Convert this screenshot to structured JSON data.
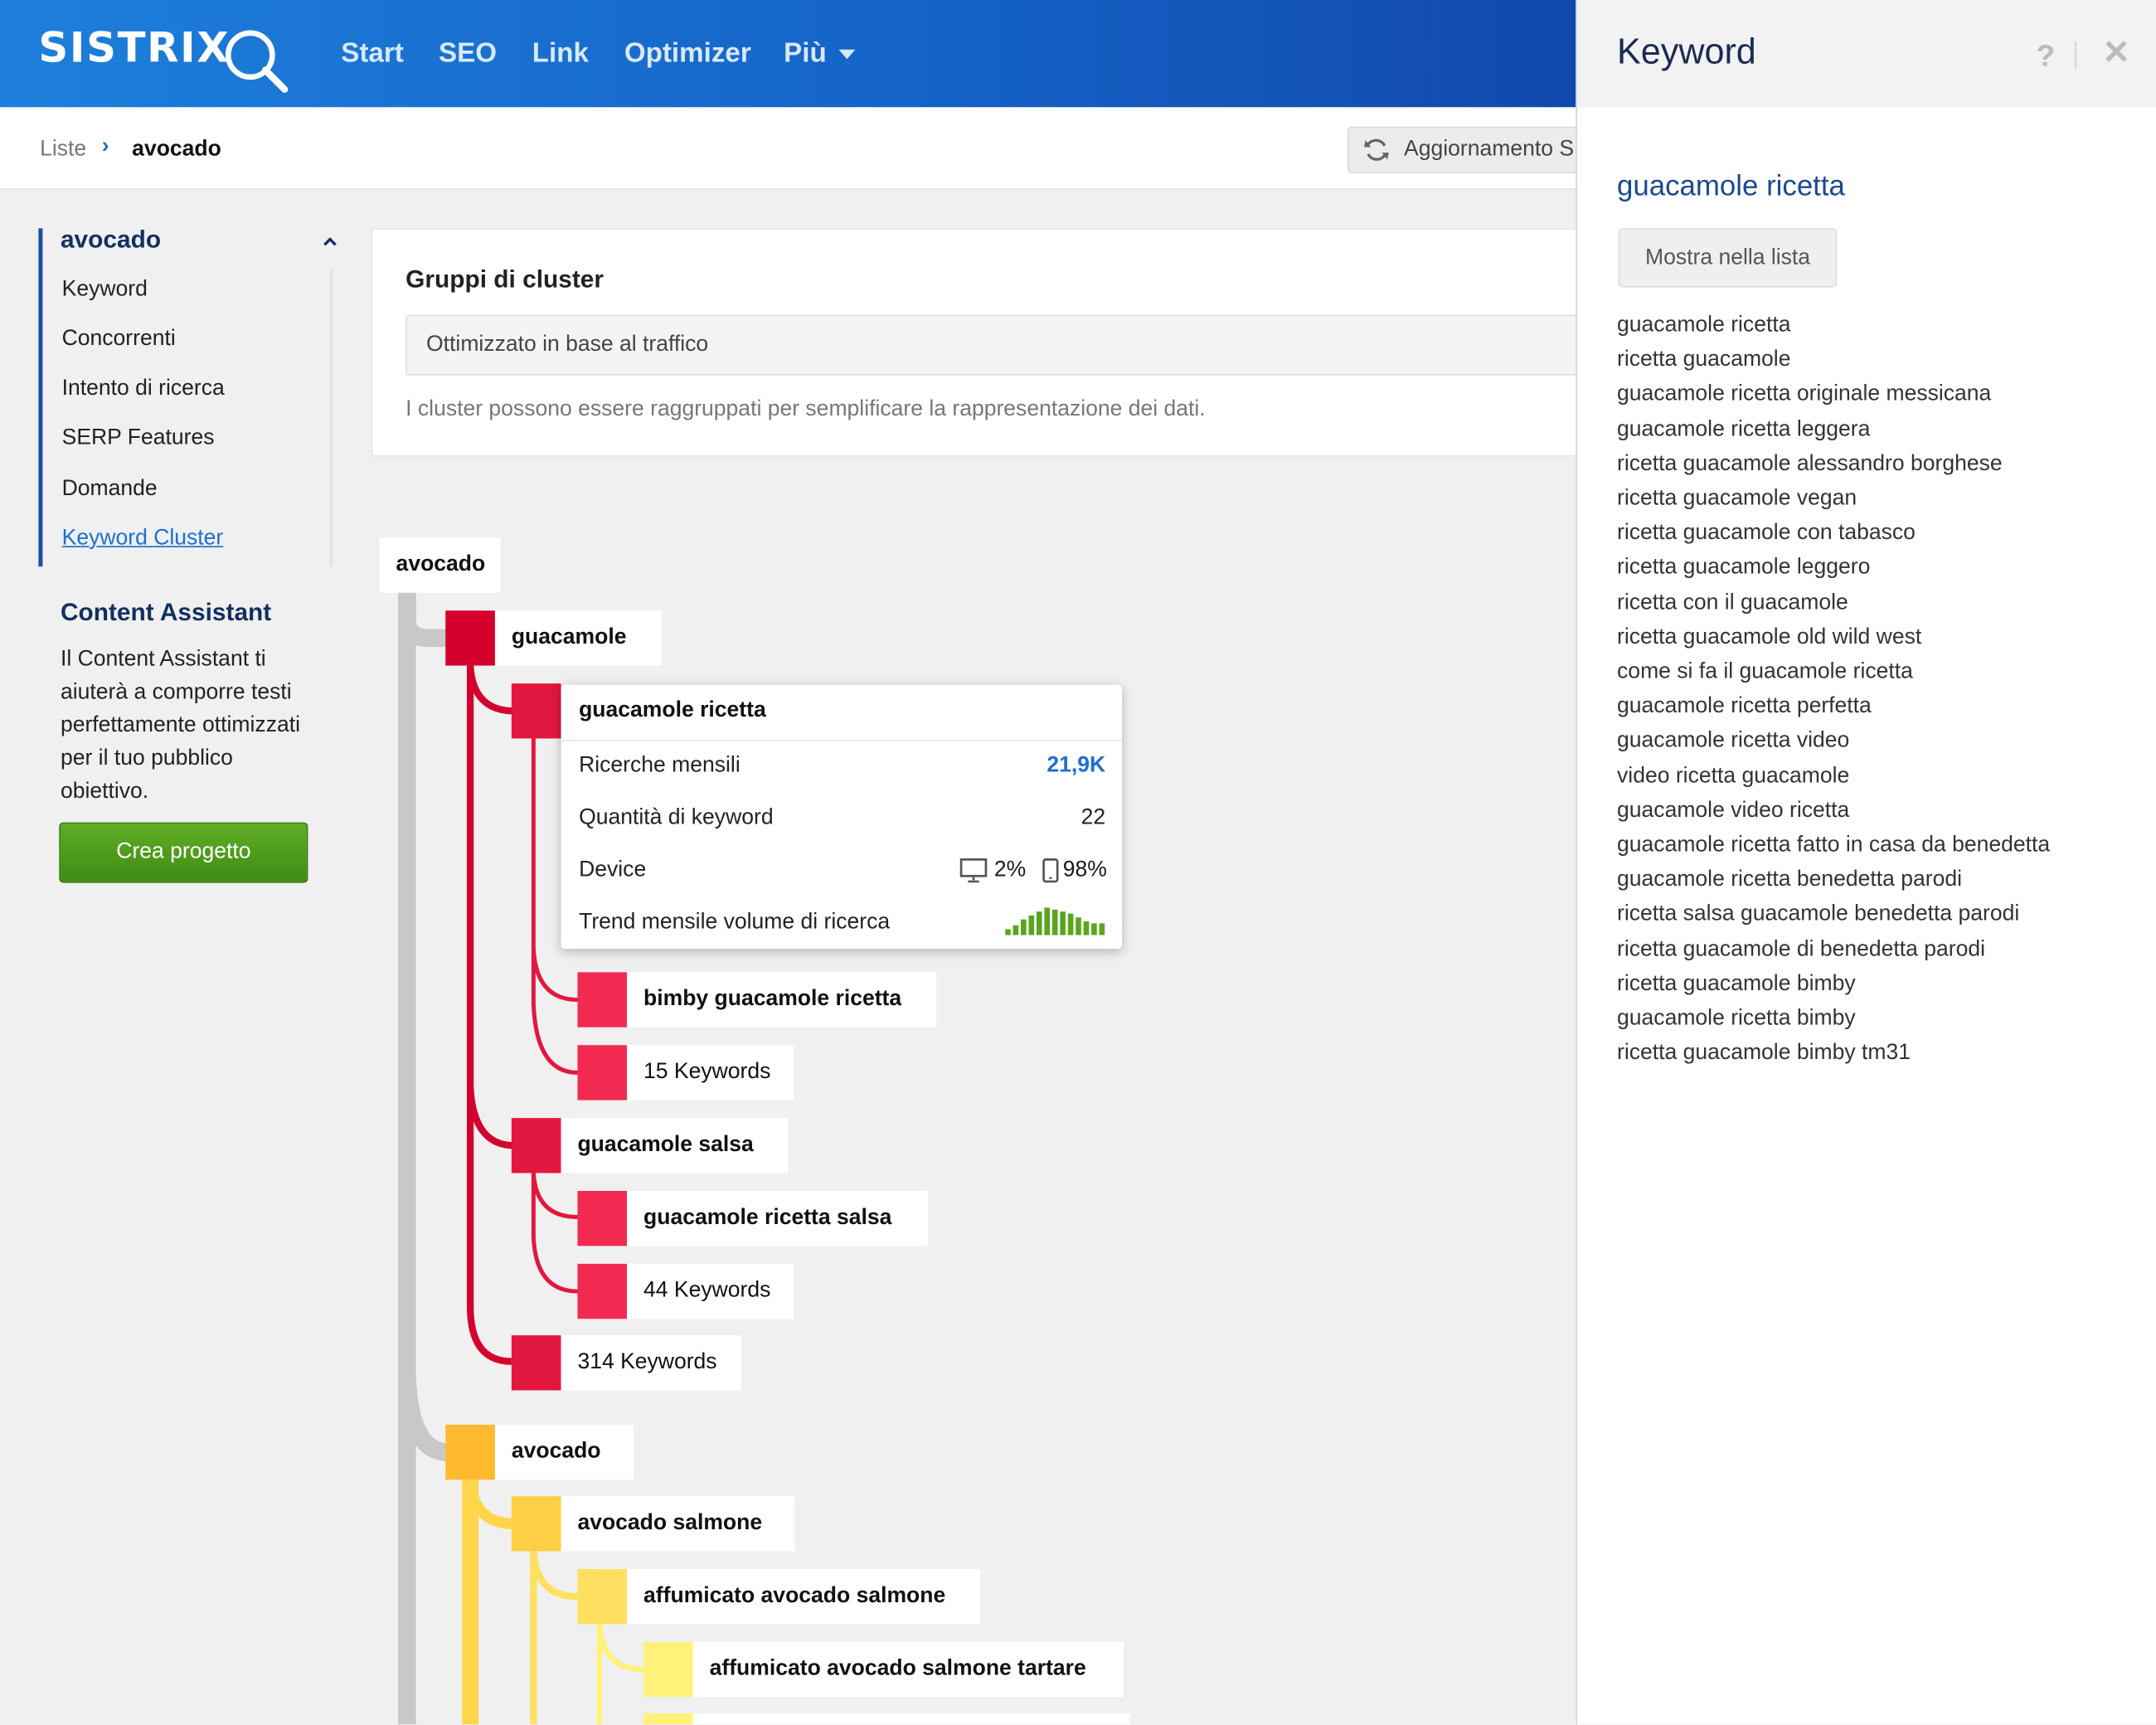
{
  "header": {
    "logo": "SISTRIX",
    "nav": [
      "Start",
      "SEO",
      "Link",
      "Optimizer",
      "Più"
    ]
  },
  "breadcrumb": {
    "root": "Liste",
    "separator": "›",
    "current": "avocado"
  },
  "refresh_button": "Aggiornamento S",
  "sidebar": {
    "title": "avocado",
    "items": [
      "Keyword",
      "Concorrenti",
      "Intento di ricerca",
      "SERP Features",
      "Domande",
      "Keyword Cluster"
    ],
    "active_item": "Keyword Cluster",
    "content_assistant": {
      "title": "Content Assistant",
      "text": "Il Content Assistant ti aiuterà a comporre testi perfettamente ottimizzati per il tuo pubblico obiettivo.",
      "button": "Crea progetto"
    }
  },
  "groups": {
    "title": "Gruppi di cluster",
    "selected": "Ottimizzato in base al traffico",
    "hint": "I cluster possono essere raggruppati per semplificare la rappresentazione dei dati."
  },
  "tree": {
    "root": "avocado",
    "nodes": [
      {
        "label": "guacamole",
        "color": "#d4002d"
      },
      {
        "label": "guacamole ricetta",
        "color": "#e2173f"
      },
      {
        "label": "bimby guacamole ricetta",
        "color": "#f22a52"
      },
      {
        "label": "15 Keywords",
        "color": "#f22a52"
      },
      {
        "label": "guacamole salsa",
        "color": "#e2173f"
      },
      {
        "label": "guacamole ricetta salsa",
        "color": "#f22a52"
      },
      {
        "label": "44 Keywords",
        "color": "#f22a52"
      },
      {
        "label": "314 Keywords",
        "color": "#e2173f"
      },
      {
        "label": "avocado",
        "color": "#ffb92e"
      },
      {
        "label": "avocado salmone",
        "color": "#ffcf45"
      },
      {
        "label": "affumicato avocado salmone",
        "color": "#ffe061"
      },
      {
        "label": "affumicato avocado salmone tartare",
        "color": "#fff27a"
      }
    ],
    "tooltip": {
      "title": "guacamole ricetta",
      "rows": [
        {
          "label": "Ricerche mensili",
          "value": "21,9K"
        },
        {
          "label": "Quantità di keyword",
          "value": "22"
        },
        {
          "label": "Device",
          "desktop": "2%",
          "mobile": "98%"
        },
        {
          "label": "Trend mensile volume di ricerca"
        }
      ],
      "trend": [
        3,
        5,
        8,
        10,
        12,
        14,
        13,
        12,
        11,
        9,
        7,
        6,
        6
      ]
    }
  },
  "panel": {
    "title": "Keyword",
    "help": "?",
    "close": "✕",
    "keyword": "guacamole ricetta",
    "show_button": "Mostra nella lista",
    "keywords": [
      "guacamole ricetta",
      "ricetta guacamole",
      "guacamole ricetta originale messicana",
      "guacamole ricetta leggera",
      "ricetta guacamole alessandro borghese",
      "ricetta guacamole vegan",
      "ricetta guacamole con tabasco",
      "ricetta guacamole leggero",
      "ricetta con il guacamole",
      "ricetta guacamole old wild west",
      "come si fa il guacamole ricetta",
      "guacamole ricetta perfetta",
      "guacamole ricetta video",
      "video ricetta guacamole",
      "guacamole video ricetta",
      "guacamole ricetta fatto in casa da benedetta",
      "guacamole ricetta benedetta parodi",
      "ricetta salsa guacamole benedetta parodi",
      "ricetta guacamole di benedetta parodi",
      "ricetta guacamole bimby",
      "guacamole ricetta bimby",
      "ricetta guacamole bimby tm31"
    ]
  }
}
